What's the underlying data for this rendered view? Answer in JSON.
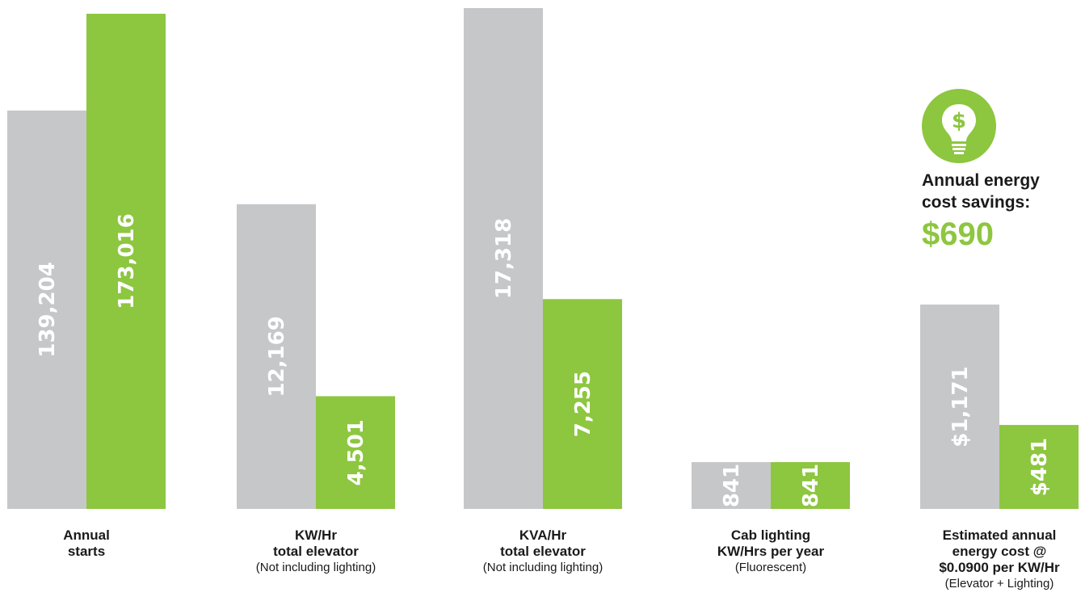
{
  "chart_data": {
    "type": "bar",
    "colors": {
      "before": "#c6c7c9",
      "after": "#8dc63f"
    },
    "groups": [
      {
        "id": "annual-starts",
        "label": [
          "Annual",
          "starts"
        ],
        "note": "",
        "values": [
          139204,
          173016
        ],
        "value_labels": [
          "139,204",
          "173,016"
        ],
        "max": 175000
      },
      {
        "id": "kw-hr",
        "label": [
          "KW/Hr",
          "total elevator"
        ],
        "note": "(Not including lighting)",
        "values": [
          12169,
          4501
        ],
        "value_labels": [
          "12,169",
          "4,501"
        ],
        "max": 20000
      },
      {
        "id": "kva-hr",
        "label": [
          "KVA/Hr",
          "total elevator"
        ],
        "note": "(Not including lighting)",
        "values": [
          17318,
          7255
        ],
        "value_labels": [
          "17,318",
          "7,255"
        ],
        "max": 17318
      },
      {
        "id": "cab-lighting",
        "label": [
          "Cab lighting",
          "KW/Hrs per year"
        ],
        "note": "(Fluorescent)",
        "values": [
          841,
          841
        ],
        "value_labels": [
          "841",
          "841"
        ],
        "max": 9000
      },
      {
        "id": "annual-cost",
        "label": [
          "Estimated annual",
          "energy cost @",
          "$0.0900 per KW/Hr"
        ],
        "note": "(Elevator + Lighting)",
        "values": [
          1171,
          481
        ],
        "value_labels": [
          "$1,171",
          "$481"
        ],
        "max": 2870
      }
    ]
  },
  "savings": {
    "icon": "lightbulb-dollar-icon",
    "title_lines": [
      "Annual energy",
      "cost savings:"
    ],
    "value": "$690"
  }
}
